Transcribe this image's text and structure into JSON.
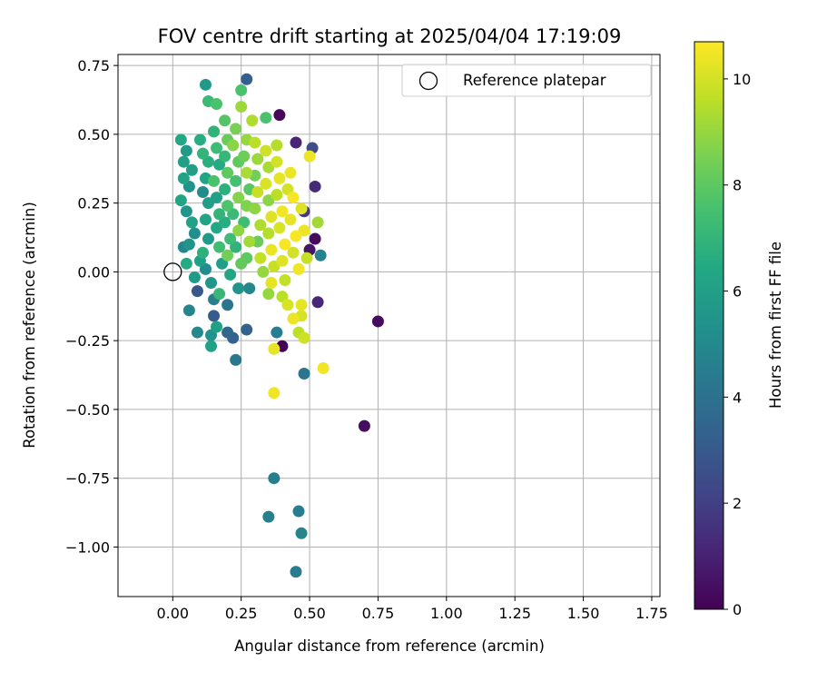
{
  "chart_data": {
    "type": "scatter",
    "title": "FOV centre drift starting at 2025/04/04 17:19:09",
    "xlabel": "Angular distance from reference (arcmin)",
    "ylabel": "Rotation from reference (arcmin)",
    "xlim": [
      -0.2,
      1.78
    ],
    "ylim": [
      -1.18,
      0.79
    ],
    "xticks": [
      0.0,
      0.25,
      0.5,
      0.75,
      1.0,
      1.25,
      1.5,
      1.75
    ],
    "xtick_labels": [
      "0.00",
      "0.25",
      "0.50",
      "0.75",
      "1.00",
      "1.25",
      "1.50",
      "1.75"
    ],
    "yticks": [
      0.75,
      0.5,
      0.25,
      0.0,
      -0.25,
      -0.5,
      -0.75,
      -1.0
    ],
    "ytick_labels": [
      "0.75",
      "0.50",
      "0.25",
      "0.00",
      "−0.25",
      "−0.50",
      "−0.75",
      "−1.00"
    ],
    "grid": true,
    "legend": {
      "placement": "top-right",
      "entries": [
        "Reference platepar"
      ]
    },
    "reference_point": {
      "x": 0.0,
      "y": 0.0,
      "label": "Reference platepar"
    },
    "colorbar": {
      "label": "Hours from first FF file",
      "colormap": "viridis",
      "range": [
        0,
        10.7
      ],
      "ticks": [
        0,
        2,
        4,
        6,
        8,
        10
      ],
      "tick_labels": [
        "0",
        "2",
        "4",
        "6",
        "8",
        "10"
      ]
    },
    "series": [
      {
        "points": [
          {
            "x": 0.39,
            "y": 0.57,
            "h": 0.2
          },
          {
            "x": 0.45,
            "y": 0.47,
            "h": 1.1
          },
          {
            "x": 0.52,
            "y": 0.31,
            "h": 1.3
          },
          {
            "x": 0.4,
            "y": -0.27,
            "h": 0.1
          },
          {
            "x": 0.5,
            "y": 0.08,
            "h": 0.6
          },
          {
            "x": 0.52,
            "y": 0.12,
            "h": 0.3
          },
          {
            "x": 0.75,
            "y": -0.18,
            "h": 0.3
          },
          {
            "x": 0.7,
            "y": -0.56,
            "h": 0.4
          },
          {
            "x": 0.53,
            "y": -0.11,
            "h": 1.2
          },
          {
            "x": 0.48,
            "y": 0.22,
            "h": 1.8
          },
          {
            "x": 0.51,
            "y": 0.45,
            "h": 2.5
          },
          {
            "x": 0.27,
            "y": 0.7,
            "h": 3.2
          },
          {
            "x": 0.09,
            "y": -0.07,
            "h": 2.9
          },
          {
            "x": 0.15,
            "y": -0.16,
            "h": 3.1
          },
          {
            "x": 0.2,
            "y": -0.22,
            "h": 3.5
          },
          {
            "x": 0.27,
            "y": -0.21,
            "h": 3.4
          },
          {
            "x": 0.22,
            "y": -0.24,
            "h": 3.3
          },
          {
            "x": 0.38,
            "y": -0.22,
            "h": 4.5
          },
          {
            "x": 0.23,
            "y": -0.32,
            "h": 4.3
          },
          {
            "x": 0.48,
            "y": -0.37,
            "h": 4.2
          },
          {
            "x": 0.37,
            "y": -0.75,
            "h": 4.6
          },
          {
            "x": 0.35,
            "y": -0.89,
            "h": 4.6
          },
          {
            "x": 0.46,
            "y": -0.87,
            "h": 4.5
          },
          {
            "x": 0.47,
            "y": -0.95,
            "h": 4.8
          },
          {
            "x": 0.45,
            "y": -1.09,
            "h": 4.4
          },
          {
            "x": 0.06,
            "y": -0.14,
            "h": 4.8
          },
          {
            "x": 0.09,
            "y": -0.22,
            "h": 5.0
          },
          {
            "x": 0.14,
            "y": -0.23,
            "h": 5.4
          },
          {
            "x": 0.14,
            "y": -0.27,
            "h": 6.1
          },
          {
            "x": 0.12,
            "y": 0.68,
            "h": 5.7
          },
          {
            "x": 0.13,
            "y": 0.62,
            "h": 7.2
          },
          {
            "x": 0.16,
            "y": 0.61,
            "h": 7.6
          },
          {
            "x": 0.25,
            "y": 0.66,
            "h": 7.6
          },
          {
            "x": 0.25,
            "y": 0.6,
            "h": 9.1
          },
          {
            "x": 0.29,
            "y": 0.55,
            "h": 9.4
          },
          {
            "x": 0.34,
            "y": 0.56,
            "h": 7.6
          },
          {
            "x": 0.38,
            "y": 0.46,
            "h": 9.5
          },
          {
            "x": 0.36,
            "y": -0.04,
            "h": 10.3
          },
          {
            "x": 0.42,
            "y": 0.3,
            "h": 10.0
          },
          {
            "x": 0.5,
            "y": 0.42,
            "h": 10.4
          },
          {
            "x": 0.46,
            "y": -0.22,
            "h": 9.6
          },
          {
            "x": 0.48,
            "y": -0.24,
            "h": 9.9
          },
          {
            "x": 0.37,
            "y": -0.28,
            "h": 10.3
          },
          {
            "x": 0.37,
            "y": -0.44,
            "h": 10.5
          },
          {
            "x": 0.55,
            "y": -0.35,
            "h": 10.5
          },
          {
            "x": 0.47,
            "y": -0.12,
            "h": 10.3
          },
          {
            "x": 0.47,
            "y": -0.16,
            "h": 10.1
          },
          {
            "x": 0.35,
            "y": -0.08,
            "h": 9.0
          },
          {
            "x": 0.4,
            "y": -0.09,
            "h": 9.6
          },
          {
            "x": 0.53,
            "y": 0.18,
            "h": 9.2
          },
          {
            "x": 0.54,
            "y": 0.06,
            "h": 4.7
          },
          {
            "x": 0.03,
            "y": 0.48,
            "h": 6.4
          },
          {
            "x": 0.05,
            "y": 0.44,
            "h": 5.8
          },
          {
            "x": 0.04,
            "y": 0.4,
            "h": 6.0
          },
          {
            "x": 0.07,
            "y": 0.37,
            "h": 5.9
          },
          {
            "x": 0.04,
            "y": 0.34,
            "h": 6.2
          },
          {
            "x": 0.06,
            "y": 0.31,
            "h": 5.4
          },
          {
            "x": 0.03,
            "y": 0.26,
            "h": 6.3
          },
          {
            "x": 0.05,
            "y": 0.22,
            "h": 5.6
          },
          {
            "x": 0.07,
            "y": 0.18,
            "h": 6.1
          },
          {
            "x": 0.08,
            "y": 0.14,
            "h": 5.3
          },
          {
            "x": 0.06,
            "y": 0.1,
            "h": 5.5
          },
          {
            "x": 0.04,
            "y": 0.09,
            "h": 4.9
          },
          {
            "x": 0.05,
            "y": 0.03,
            "h": 6.5
          },
          {
            "x": 0.08,
            "y": -0.02,
            "h": 5.8
          },
          {
            "x": 0.1,
            "y": 0.04,
            "h": 6.0
          },
          {
            "x": 0.11,
            "y": 0.29,
            "h": 5.1
          },
          {
            "x": 0.1,
            "y": 0.48,
            "h": 6.6
          },
          {
            "x": 0.11,
            "y": 0.43,
            "h": 7.0
          },
          {
            "x": 0.13,
            "y": 0.4,
            "h": 6.7
          },
          {
            "x": 0.12,
            "y": 0.34,
            "h": 6.3
          },
          {
            "x": 0.13,
            "y": 0.25,
            "h": 5.9
          },
          {
            "x": 0.12,
            "y": 0.19,
            "h": 6.2
          },
          {
            "x": 0.13,
            "y": 0.12,
            "h": 5.7
          },
          {
            "x": 0.11,
            "y": 0.07,
            "h": 6.8
          },
          {
            "x": 0.12,
            "y": 0.01,
            "h": 5.2
          },
          {
            "x": 0.14,
            "y": -0.04,
            "h": 5.6
          },
          {
            "x": 0.15,
            "y": -0.1,
            "h": 4.6
          },
          {
            "x": 0.16,
            "y": -0.2,
            "h": 6.0
          },
          {
            "x": 0.17,
            "y": -0.08,
            "h": 7.1
          },
          {
            "x": 0.15,
            "y": 0.51,
            "h": 6.9
          },
          {
            "x": 0.16,
            "y": 0.45,
            "h": 7.3
          },
          {
            "x": 0.17,
            "y": 0.39,
            "h": 6.5
          },
          {
            "x": 0.15,
            "y": 0.33,
            "h": 7.6
          },
          {
            "x": 0.16,
            "y": 0.27,
            "h": 6.1
          },
          {
            "x": 0.17,
            "y": 0.21,
            "h": 7.0
          },
          {
            "x": 0.16,
            "y": 0.16,
            "h": 6.4
          },
          {
            "x": 0.17,
            "y": 0.09,
            "h": 7.4
          },
          {
            "x": 0.18,
            "y": 0.03,
            "h": 5.9
          },
          {
            "x": 0.19,
            "y": 0.55,
            "h": 7.8
          },
          {
            "x": 0.2,
            "y": 0.48,
            "h": 8.2
          },
          {
            "x": 0.19,
            "y": 0.42,
            "h": 7.1
          },
          {
            "x": 0.2,
            "y": 0.36,
            "h": 8.0
          },
          {
            "x": 0.19,
            "y": 0.3,
            "h": 6.8
          },
          {
            "x": 0.2,
            "y": 0.24,
            "h": 7.7
          },
          {
            "x": 0.19,
            "y": 0.18,
            "h": 6.6
          },
          {
            "x": 0.21,
            "y": 0.12,
            "h": 7.3
          },
          {
            "x": 0.2,
            "y": 0.06,
            "h": 8.4
          },
          {
            "x": 0.21,
            "y": -0.01,
            "h": 6.3
          },
          {
            "x": 0.2,
            "y": -0.12,
            "h": 4.2
          },
          {
            "x": 0.23,
            "y": 0.52,
            "h": 8.5
          },
          {
            "x": 0.22,
            "y": 0.46,
            "h": 8.8
          },
          {
            "x": 0.24,
            "y": 0.4,
            "h": 8.0
          },
          {
            "x": 0.23,
            "y": 0.33,
            "h": 7.5
          },
          {
            "x": 0.24,
            "y": 0.27,
            "h": 8.7
          },
          {
            "x": 0.22,
            "y": 0.21,
            "h": 7.2
          },
          {
            "x": 0.24,
            "y": 0.15,
            "h": 8.9
          },
          {
            "x": 0.23,
            "y": 0.09,
            "h": 6.9
          },
          {
            "x": 0.25,
            "y": 0.03,
            "h": 8.1
          },
          {
            "x": 0.24,
            "y": -0.06,
            "h": 5.5
          },
          {
            "x": 0.27,
            "y": 0.48,
            "h": 9.0
          },
          {
            "x": 0.26,
            "y": 0.42,
            "h": 8.3
          },
          {
            "x": 0.27,
            "y": 0.36,
            "h": 9.3
          },
          {
            "x": 0.28,
            "y": 0.3,
            "h": 7.9
          },
          {
            "x": 0.27,
            "y": 0.24,
            "h": 8.6
          },
          {
            "x": 0.26,
            "y": 0.18,
            "h": 7.4
          },
          {
            "x": 0.28,
            "y": 0.11,
            "h": 9.2
          },
          {
            "x": 0.27,
            "y": 0.05,
            "h": 8.0
          },
          {
            "x": 0.28,
            "y": -0.06,
            "h": 4.9
          },
          {
            "x": 0.3,
            "y": 0.47,
            "h": 9.6
          },
          {
            "x": 0.31,
            "y": 0.41,
            "h": 9.1
          },
          {
            "x": 0.3,
            "y": 0.35,
            "h": 8.4
          },
          {
            "x": 0.31,
            "y": 0.29,
            "h": 9.8
          },
          {
            "x": 0.3,
            "y": 0.23,
            "h": 8.9
          },
          {
            "x": 0.32,
            "y": 0.17,
            "h": 9.4
          },
          {
            "x": 0.31,
            "y": 0.11,
            "h": 8.2
          },
          {
            "x": 0.32,
            "y": 0.05,
            "h": 9.7
          },
          {
            "x": 0.33,
            "y": 0.0,
            "h": 9.0
          },
          {
            "x": 0.34,
            "y": 0.44,
            "h": 9.9
          },
          {
            "x": 0.35,
            "y": 0.38,
            "h": 9.3
          },
          {
            "x": 0.34,
            "y": 0.32,
            "h": 10.1
          },
          {
            "x": 0.35,
            "y": 0.26,
            "h": 8.8
          },
          {
            "x": 0.36,
            "y": 0.2,
            "h": 10.2
          },
          {
            "x": 0.35,
            "y": 0.14,
            "h": 9.5
          },
          {
            "x": 0.36,
            "y": 0.08,
            "h": 10.4
          },
          {
            "x": 0.37,
            "y": 0.02,
            "h": 9.8
          },
          {
            "x": 0.38,
            "y": 0.4,
            "h": 10.0
          },
          {
            "x": 0.39,
            "y": 0.34,
            "h": 10.3
          },
          {
            "x": 0.38,
            "y": 0.28,
            "h": 9.6
          },
          {
            "x": 0.4,
            "y": 0.22,
            "h": 10.5
          },
          {
            "x": 0.39,
            "y": 0.16,
            "h": 10.1
          },
          {
            "x": 0.41,
            "y": 0.1,
            "h": 10.6
          },
          {
            "x": 0.4,
            "y": 0.04,
            "h": 10.2
          },
          {
            "x": 0.41,
            "y": -0.03,
            "h": 9.7
          },
          {
            "x": 0.43,
            "y": 0.36,
            "h": 10.4
          },
          {
            "x": 0.44,
            "y": 0.27,
            "h": 10.6
          },
          {
            "x": 0.43,
            "y": 0.19,
            "h": 10.3
          },
          {
            "x": 0.45,
            "y": 0.13,
            "h": 10.6
          },
          {
            "x": 0.44,
            "y": 0.07,
            "h": 10.0
          },
          {
            "x": 0.46,
            "y": 0.01,
            "h": 10.5
          },
          {
            "x": 0.47,
            "y": 0.23,
            "h": 10.2
          },
          {
            "x": 0.48,
            "y": 0.15,
            "h": 10.4
          },
          {
            "x": 0.49,
            "y": 0.05,
            "h": 9.8
          },
          {
            "x": 0.42,
            "y": -0.12,
            "h": 10.1
          },
          {
            "x": 0.44,
            "y": -0.17,
            "h": 10.4
          }
        ]
      }
    ]
  }
}
